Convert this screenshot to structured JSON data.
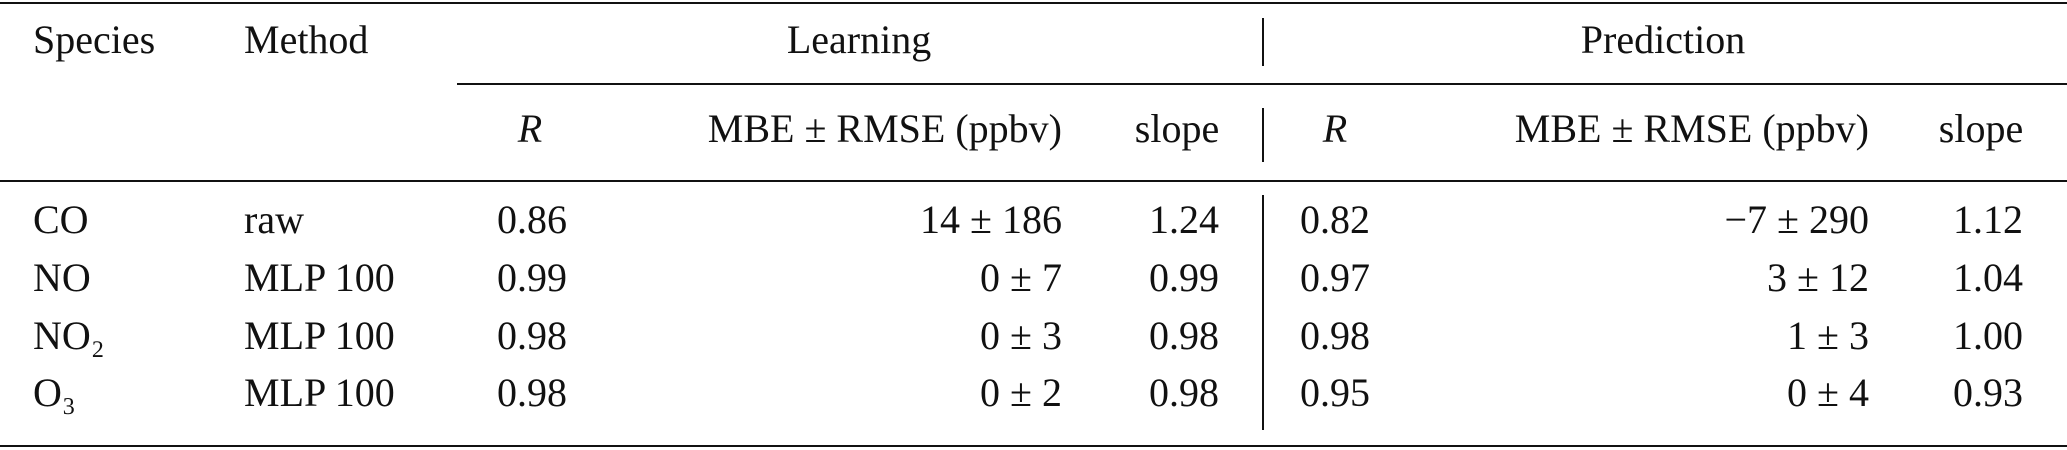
{
  "table": {
    "header": {
      "species": "Species",
      "method": "Method",
      "groups": [
        "Learning",
        "Prediction"
      ]
    },
    "subheader": [
      [
        "R",
        "MBE ± RMSE (ppbv)",
        "slope"
      ],
      [
        "R",
        "MBE ± RMSE (ppbv)",
        "slope"
      ]
    ],
    "rows": [
      [
        "CO",
        "raw",
        "0.86",
        "14 ± 186",
        "1.24",
        "0.82",
        "−7 ± 290",
        "1.12"
      ],
      [
        "NO",
        "MLP 100",
        "0.99",
        "0 ± 7",
        "0.99",
        "0.97",
        "3 ± 12",
        "1.04"
      ],
      [
        "NO₂",
        "MLP 100",
        "0.98",
        "0 ± 3",
        "0.98",
        "0.98",
        "1 ± 3",
        "1.00"
      ],
      [
        "O₃",
        "MLP 100",
        "0.98",
        "0 ± 2",
        "0.98",
        "0.95",
        "0 ± 4",
        "0.93"
      ]
    ]
  }
}
